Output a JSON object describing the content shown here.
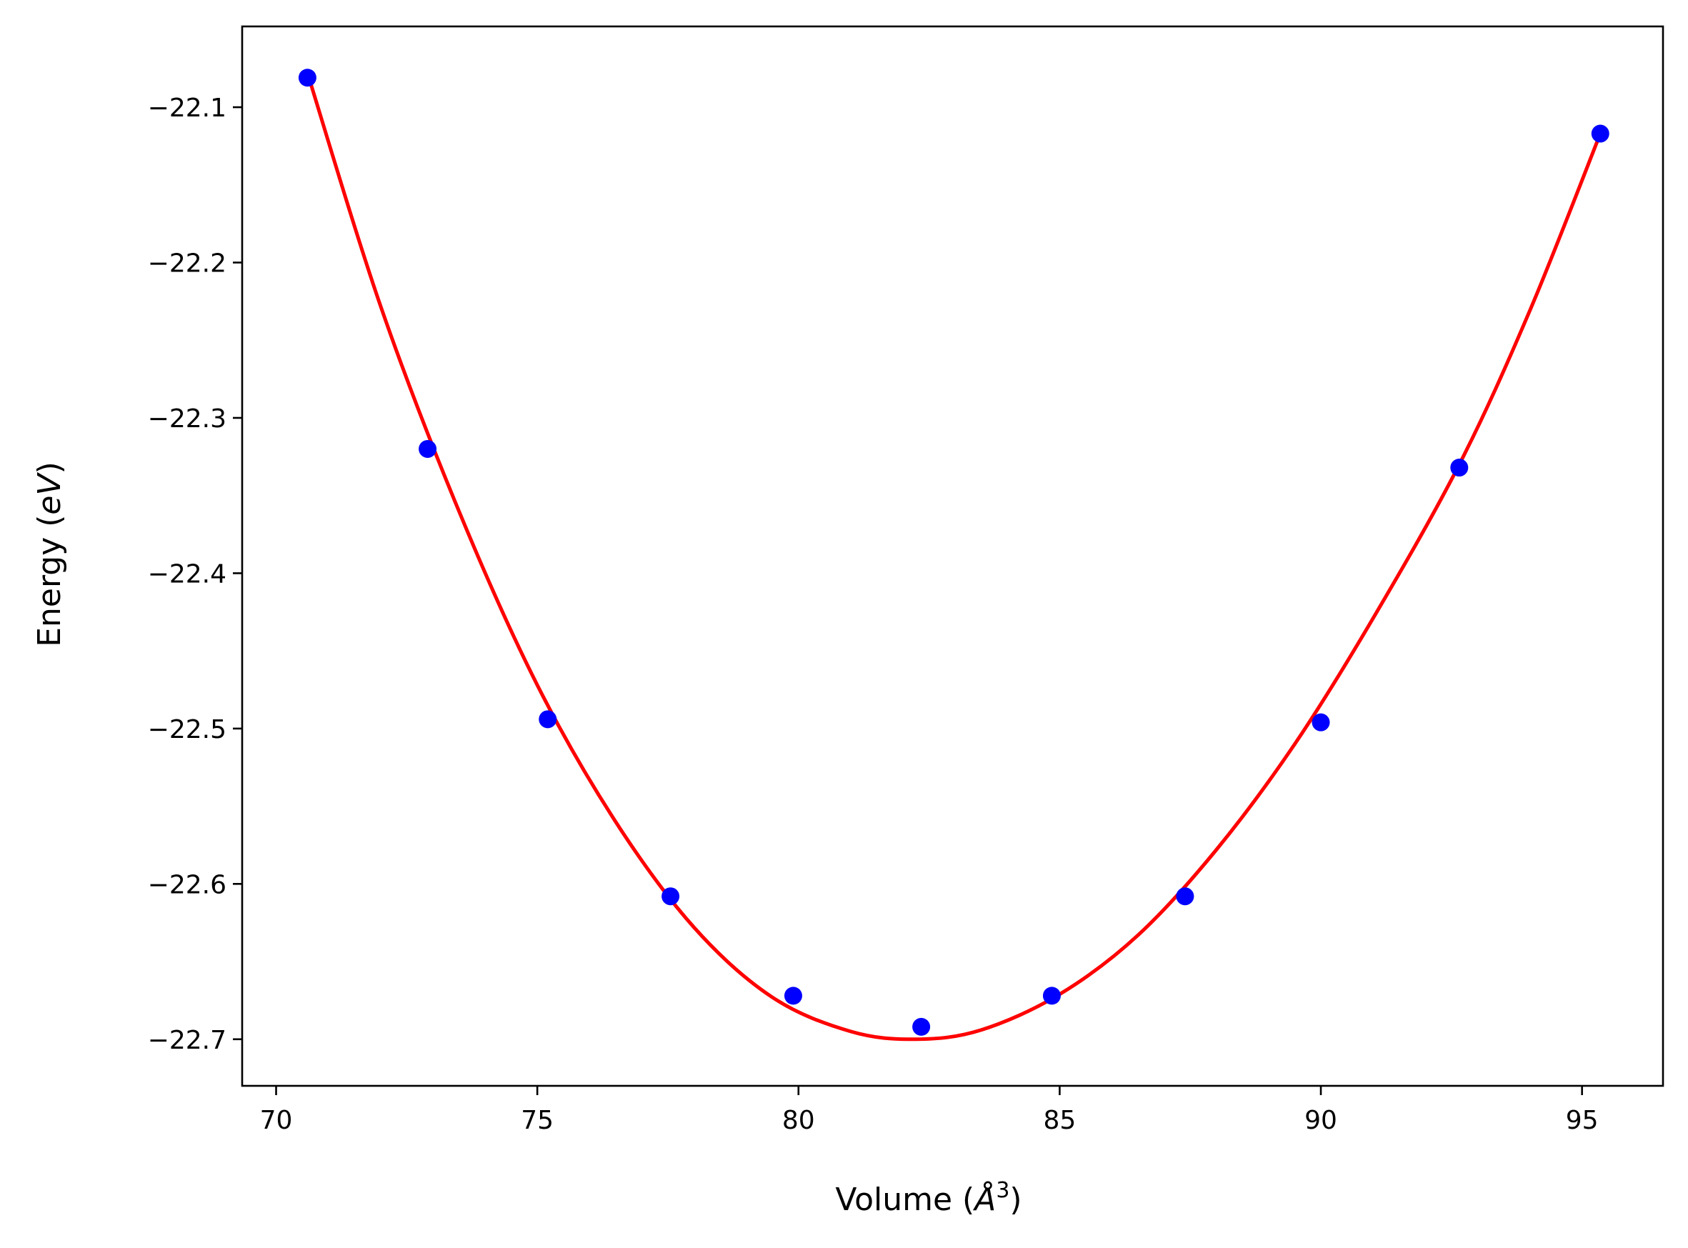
{
  "chart_data": {
    "type": "scatter",
    "title": "",
    "xlabel": {
      "prefix": "Volume (",
      "symbol": "Å",
      "sup": "3",
      "suffix": ")"
    },
    "ylabel": {
      "prefix": "Energy (",
      "symbol": "eV",
      "suffix": ")"
    },
    "xlim": [
      69.35,
      96.55
    ],
    "ylim": [
      -22.73,
      -22.048
    ],
    "x_ticks": [
      {
        "value": 70,
        "label": "70"
      },
      {
        "value": 75,
        "label": "75"
      },
      {
        "value": 80,
        "label": "80"
      },
      {
        "value": 85,
        "label": "85"
      },
      {
        "value": 90,
        "label": "90"
      },
      {
        "value": 95,
        "label": "95"
      }
    ],
    "y_ticks": [
      {
        "value": -22.1,
        "label": "−22.1"
      },
      {
        "value": -22.2,
        "label": "−22.2"
      },
      {
        "value": -22.3,
        "label": "−22.3"
      },
      {
        "value": -22.4,
        "label": "−22.4"
      },
      {
        "value": -22.5,
        "label": "−22.5"
      },
      {
        "value": -22.6,
        "label": "−22.6"
      },
      {
        "value": -22.7,
        "label": "−22.7"
      }
    ],
    "grid": false,
    "legend": "none",
    "series": [
      {
        "kind": "points",
        "color": "#0000ff",
        "x": [
          70.6,
          72.9,
          75.2,
          77.55,
          79.9,
          82.35,
          84.85,
          87.4,
          90.0,
          92.65,
          95.35
        ],
        "y": [
          -22.081,
          -22.32,
          -22.494,
          -22.608,
          -22.672,
          -22.692,
          -22.672,
          -22.608,
          -22.496,
          -22.332,
          -22.117
        ]
      },
      {
        "kind": "fit-curve",
        "color": "#ff0000",
        "x": [
          70.6,
          72.0,
          73.5,
          75.0,
          76.5,
          78.0,
          79.5,
          81.0,
          82.25,
          83.5,
          85.0,
          86.5,
          88.0,
          89.5,
          91.0,
          92.65,
          94.0,
          95.35
        ],
        "y": [
          -22.078,
          -22.228,
          -22.36,
          -22.472,
          -22.56,
          -22.628,
          -22.673,
          -22.695,
          -22.7,
          -22.694,
          -22.671,
          -22.633,
          -22.578,
          -22.51,
          -22.429,
          -22.33,
          -22.231,
          -22.117
        ]
      }
    ]
  }
}
